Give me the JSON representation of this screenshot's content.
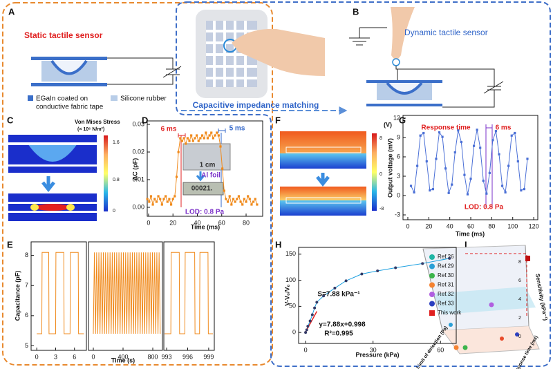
{
  "panels": {
    "A": {
      "letter": "A",
      "title": "Static tactile sensor",
      "legend": [
        "EGaIn coated on",
        "conductive fabric tape",
        "Silicone rubber"
      ]
    },
    "B": {
      "letter": "B",
      "title": "Dynamic tactile sensor"
    },
    "arrow": "Capacitive impedance matching",
    "C": {
      "letter": "C",
      "title": "Von Mises Stress",
      "unit": "(× 10⁶ N/m²)",
      "ticks": [
        "1.6",
        "0.8",
        "0"
      ]
    },
    "D": {
      "letter": "D"
    },
    "E": {
      "letter": "E"
    },
    "F": {
      "letter": "F",
      "unit": "(V)",
      "ticks": [
        "8",
        "0",
        "-8"
      ]
    },
    "G": {
      "letter": "G"
    },
    "H": {
      "letter": "H"
    },
    "I": {
      "letter": "I",
      "legend": [
        {
          "name": "Ref.26",
          "color": "#1fb5a5"
        },
        {
          "name": "Ref.29",
          "color": "#2a9fd6"
        },
        {
          "name": "Ref.30",
          "color": "#3cb44b"
        },
        {
          "name": "Ref.31",
          "color": "#f58231"
        },
        {
          "name": "Ref.32",
          "color": "#b05ee0"
        },
        {
          "name": "Ref.33",
          "color": "#2b3fc0"
        },
        {
          "name": "This work",
          "color": "#e02020"
        }
      ],
      "zlabel": "Sensitivity (kPa⁻¹)",
      "xlabel": "Limit of detection (Pa)",
      "ylabel": "Response time (ms)",
      "zticks": [
        "0",
        "2",
        "4",
        "6",
        "8"
      ]
    }
  },
  "chart_data": [
    {
      "type": "line",
      "marker": "square",
      "color": "#f08a1c",
      "x": [
        -1,
        0.5,
        2,
        3.5,
        5,
        6.5,
        8,
        9.5,
        11,
        12.5,
        14,
        15.5,
        17,
        18.5,
        20,
        21.5,
        23,
        24.5,
        26,
        27.5,
        29,
        30.5,
        32,
        33.5,
        35,
        36.5,
        38,
        39.5,
        41,
        42.5,
        44,
        45.5,
        47,
        48.5,
        50,
        51.5,
        53,
        54.5,
        56,
        57.5,
        59,
        60.5,
        62,
        63.5,
        65,
        66.5,
        68,
        69.5,
        71,
        72.5,
        74,
        75.5,
        77,
        78.5,
        80,
        81.5,
        83,
        84.5,
        86,
        87.5,
        89
      ],
      "values": [
        0.003,
        0.002,
        0.004,
        0.001,
        0.003,
        0.002,
        0.004,
        0.003,
        0.001,
        0.003,
        0.004,
        0.002,
        0.003,
        0.001,
        0.003,
        0.004,
        0.011,
        0.02,
        0.025,
        0.024,
        0.025,
        0.023,
        0.025,
        0.024,
        0.026,
        0.024,
        0.025,
        0.026,
        0.024,
        0.025,
        0.026,
        0.025,
        0.027,
        0.025,
        0.026,
        0.027,
        0.025,
        0.026,
        0.027,
        0.026,
        0.022,
        0.014,
        0.006,
        0.003,
        0.002,
        0.004,
        0.001,
        0.003,
        0.002,
        0.003,
        0.004,
        0.002,
        0.001,
        0.003,
        0.002,
        0.004,
        0.003,
        0.001,
        0.002,
        0.003,
        0.001
      ],
      "xlim": [
        -1.1,
        93.6
      ],
      "ylim": [
        -0.00325,
        0.03125
      ],
      "xticks": [
        0,
        20,
        40,
        60,
        80
      ],
      "yticks": [
        {
          "value": 0,
          "label": "0.00"
        },
        0.01,
        0.02,
        0.03
      ],
      "xlabel": "Time (ms)",
      "ylabel": "ΔC (pF)",
      "annotations": [
        "6 ms",
        "5 ms",
        "1 cm",
        "Al foil",
        "00021.",
        "LOD: 0.8 Pa"
      ]
    },
    {
      "type": "broken-line",
      "color": "#f08a1c",
      "ylim": [
        4.85,
        8.45
      ],
      "yticks": [
        5,
        6,
        7,
        8
      ],
      "xlabel": "Time (s)",
      "ylabel": "Capacitance (pF)",
      "segments": [
        {
          "xlim": [
            -0.9,
            7.9
          ],
          "xticks": [
            0,
            3,
            6
          ],
          "x": [
            0,
            0.8,
            0.85,
            1.9,
            1.95,
            3.0,
            3.05,
            4.3,
            4.35,
            5.3,
            5.35,
            6.6,
            6.65,
            7.5
          ],
          "values": [
            5.4,
            5.4,
            8.1,
            8.1,
            5.4,
            5.4,
            8.1,
            8.1,
            5.4,
            5.4,
            8.1,
            8.1,
            5.4,
            5.4
          ]
        },
        {
          "xlim": [
            -65,
            930
          ],
          "xticks": [
            0,
            400,
            800
          ],
          "x": [
            0,
            15,
            30,
            45,
            60,
            75,
            90,
            105,
            120,
            135,
            150,
            165,
            180,
            195,
            210,
            225,
            240,
            255,
            270,
            285,
            300,
            315,
            330,
            345,
            360,
            375,
            390,
            405,
            420,
            435,
            450,
            465,
            480,
            495,
            510,
            525,
            540,
            555,
            570,
            585,
            600,
            615,
            630,
            645,
            660,
            675,
            690,
            705,
            720,
            735,
            750,
            765,
            780,
            795,
            810,
            825,
            840,
            855,
            870,
            885,
            900
          ],
          "values": [
            5.4,
            8.1,
            5.4,
            8.1,
            5.4,
            8.1,
            5.4,
            8.1,
            5.4,
            8.1,
            5.4,
            8.1,
            5.4,
            8.1,
            5.4,
            8.1,
            5.4,
            8.1,
            5.4,
            8.1,
            5.4,
            8.1,
            5.4,
            8.1,
            5.4,
            8.1,
            5.4,
            8.1,
            5.4,
            8.1,
            5.4,
            8.1,
            5.4,
            8.1,
            5.4,
            8.1,
            5.4,
            8.1,
            5.4,
            8.1,
            5.4,
            8.1,
            5.4,
            8.1,
            5.4,
            8.1,
            5.4,
            8.1,
            5.4,
            8.1,
            5.4,
            8.1,
            5.4,
            8.1,
            5.4,
            8.1,
            5.4,
            8.1,
            5.4,
            8.1,
            5.4
          ]
        },
        {
          "xlim": [
            992.6,
            999.8
          ],
          "xticks": [
            993,
            996,
            999
          ],
          "x": [
            992.7,
            993.6,
            993.65,
            994.8,
            994.85,
            995.6,
            995.65,
            997,
            997.05,
            997.7,
            997.75,
            998.9,
            998.95,
            999.6
          ],
          "values": [
            5.4,
            5.4,
            8.1,
            8.1,
            5.4,
            5.4,
            8.1,
            8.1,
            5.4,
            5.4,
            8.1,
            8.1,
            5.4,
            5.4
          ]
        }
      ]
    },
    {
      "type": "line",
      "marker": "square",
      "color": "#4a6fd6",
      "x": [
        3,
        6,
        9,
        12,
        15,
        18,
        21,
        24,
        27,
        30,
        33,
        36,
        39,
        42,
        45,
        48,
        51,
        54,
        57,
        60,
        63,
        66,
        69,
        72,
        75,
        78,
        81,
        84,
        87,
        90,
        93,
        96,
        99,
        102,
        105,
        108,
        111,
        114
      ],
      "values": [
        1.5,
        0.5,
        4.6,
        9.3,
        9.7,
        5.3,
        0.8,
        1.0,
        5.7,
        9.8,
        9.1,
        4.2,
        0.4,
        1.7,
        6.7,
        10.1,
        8.3,
        3.2,
        0.2,
        2.6,
        7.7,
        10.2,
        7.4,
        2.3,
        0.3,
        3.5,
        8.6,
        10.0,
        6.4,
        1.5,
        0.5,
        4.6,
        9.3,
        9.7,
        5.3,
        0.8,
        1.0,
        5.7
      ],
      "xlim": [
        -4.6,
        123.9
      ],
      "ylim": [
        -3.75,
        12.43
      ],
      "xticks": [
        0,
        20,
        40,
        60,
        80,
        100,
        120
      ],
      "yticks": [
        -3,
        0,
        3,
        6,
        9,
        12
      ],
      "xlabel": "Time (ms)",
      "ylabel": "Output voltage (mV)",
      "annotations": [
        "Response time",
        "6 ms",
        "LOD: 0.8 Pa"
      ]
    },
    {
      "type": "line",
      "marker": "circle",
      "color": "#1a9fe0",
      "marker_color": "#333a66",
      "x": [
        0,
        0.5,
        1,
        2,
        3,
        4,
        5,
        8,
        13,
        18,
        25,
        32,
        40,
        52,
        64
      ],
      "values": [
        0,
        5,
        12,
        22,
        34,
        47,
        58,
        70,
        85,
        99,
        112,
        118,
        124,
        132,
        142
      ],
      "fit": {
        "color": "#e02020",
        "x": [
          0,
          5
        ],
        "values": [
          0.998,
          40.398
        ]
      },
      "xlim": [
        -3.1,
        67
      ],
      "ylim": [
        -21,
        163
      ],
      "xticks": [
        0,
        30,
        60
      ],
      "yticks": [
        0,
        50,
        100,
        150
      ],
      "xlabel": "Pressure (kPa)",
      "ylabel": "V-V₀/V₀",
      "annotations": [
        "S=7.88 kPa⁻¹",
        "y=7.88x+0.998",
        "R²=0.995"
      ]
    }
  ]
}
